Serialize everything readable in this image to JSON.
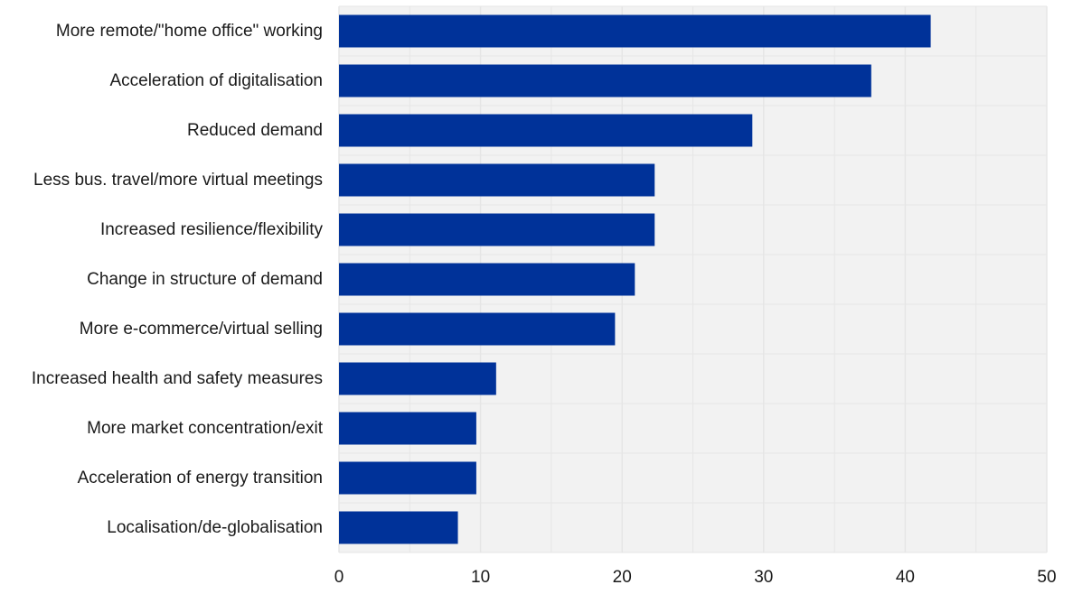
{
  "chart_data": {
    "type": "bar",
    "orientation": "horizontal",
    "categories": [
      "More remote/\"home office\" working",
      "Acceleration of digitalisation",
      "Reduced demand",
      "Less bus. travel/more virtual meetings",
      "Increased resilience/flexibility",
      "Change in structure of demand",
      "More e-commerce/virtual selling",
      "Increased health and safety measures",
      "More market concentration/exit",
      "Acceleration of energy transition",
      "Localisation/de-globalisation"
    ],
    "values": [
      41.8,
      37.6,
      29.2,
      22.3,
      22.3,
      20.9,
      19.5,
      11.1,
      9.7,
      9.7,
      8.4
    ],
    "xlim": [
      0,
      50
    ],
    "xticks": [
      "0",
      "10",
      "20",
      "30",
      "40",
      "50"
    ],
    "grid": true,
    "legend": "none",
    "colors": {
      "bar": "#003299",
      "grid": "#e6e6e6",
      "plot_background": "#f2f2f2"
    }
  }
}
